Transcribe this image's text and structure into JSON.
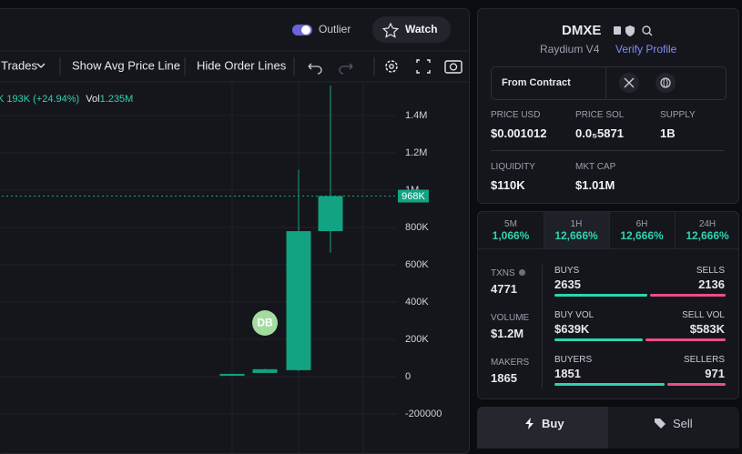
{
  "header": {
    "outlier": "Outlier",
    "watch": "Watch"
  },
  "toolbar": {
    "trades": "Trades",
    "avg_line": "Show Avg Price Line",
    "order_lines": "Hide Order Lines"
  },
  "chart_data": {
    "type": "candlestick",
    "ohlc_tail": "K",
    "change": "193K (+24.94%)",
    "vol_label": "Vol",
    "vol_value": "1.235M",
    "categories": [
      null,
      null,
      null,
      null
    ],
    "open": [
      8000,
      20000,
      35000,
      780000
    ],
    "high": [
      15000,
      42000,
      1110000,
      1560000
    ],
    "low": [
      8000,
      20000,
      30000,
      665000
    ],
    "close": [
      15000,
      40000,
      780000,
      968000
    ],
    "color": "#12a382",
    "ylim": [
      -390000,
      1585000
    ],
    "yticks": [
      -200000,
      0,
      {
        "value": 200000,
        "label": "200K"
      },
      {
        "value": 400000,
        "label": "400K"
      },
      {
        "value": 600000,
        "label": "600K"
      },
      {
        "value": 800000,
        "label": "800K"
      },
      {
        "value": 1000000,
        "label": "1M"
      },
      {
        "value": 1200000,
        "label": "1.2M"
      },
      {
        "value": 1400000,
        "label": "1.4M"
      }
    ],
    "grid": true,
    "current_price": {
      "value": 968000,
      "label": "968K"
    },
    "marker": "DB"
  },
  "token": {
    "name": "DMXE",
    "dex": "Raydium V4",
    "verify": "Verify Profile",
    "from_contract": "From Contract",
    "stats": [
      {
        "label": "PRICE USD",
        "value": "$0.001012"
      },
      {
        "label": "PRICE SOL",
        "value": "0.0₅5871"
      },
      {
        "label": "SUPPLY",
        "value": "1B"
      },
      {
        "label": "LIQUIDITY",
        "value": "$110K"
      },
      {
        "label": "MKT CAP",
        "value": "$1.01M"
      }
    ]
  },
  "periods": [
    {
      "label": "5M",
      "change": "1,066%"
    },
    {
      "label": "1H",
      "change": "12,666%"
    },
    {
      "label": "6H",
      "change": "12,666%"
    },
    {
      "label": "24H",
      "change": "12,666%"
    }
  ],
  "activity": {
    "txns": {
      "label": "TXNS",
      "value": 4771
    },
    "buys": {
      "label": "BUYS",
      "value": 2635
    },
    "sells": {
      "label": "SELLS",
      "value": 2136
    },
    "volume": {
      "label": "VOLUME",
      "value": "$1.2M"
    },
    "buy_vol": {
      "label": "BUY VOL",
      "value": {
        "value": 639000,
        "label": "$639K"
      }
    },
    "sell_vol": {
      "label": "SELL VOL",
      "value": {
        "value": 583000,
        "label": "$583K"
      }
    },
    "makers": {
      "label": "MAKERS",
      "value": 1865
    },
    "buyers": {
      "label": "BUYERS",
      "value": 1851
    },
    "sellers": {
      "label": "SELLERS",
      "value": 971
    }
  },
  "trade": {
    "buy": "Buy",
    "sell": "Sell"
  }
}
